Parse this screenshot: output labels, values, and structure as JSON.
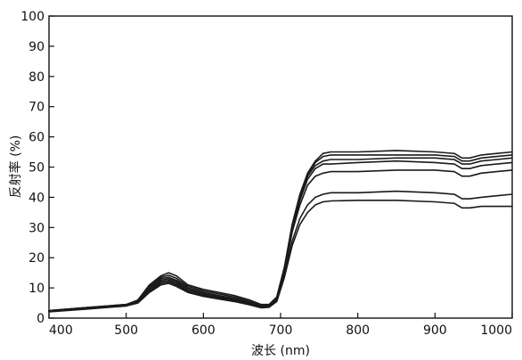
{
  "chart_data": {
    "type": "line",
    "xlabel": "波长 (nm)",
    "ylabel": "反射率 (%)",
    "xlim": [
      400,
      1000
    ],
    "ylim": [
      0,
      100
    ],
    "xticks": [
      400,
      500,
      600,
      700,
      800,
      900,
      1000
    ],
    "yticks": [
      0,
      10,
      20,
      30,
      40,
      50,
      60,
      70,
      80,
      90,
      100
    ],
    "grid": false,
    "legend": "none",
    "line_color": "#1a1a1a",
    "x": [
      400,
      450,
      500,
      515,
      530,
      545,
      555,
      565,
      580,
      600,
      620,
      640,
      660,
      675,
      685,
      695,
      705,
      715,
      725,
      735,
      745,
      755,
      765,
      800,
      850,
      900,
      925,
      935,
      945,
      960,
      980,
      1000
    ],
    "series": [
      {
        "values": [
          2.5,
          3.5,
          4.5,
          6.0,
          11.0,
          14.0,
          15.0,
          14.0,
          11.0,
          9.5,
          8.5,
          7.5,
          6.0,
          4.5,
          4.5,
          7.0,
          17.0,
          31.0,
          41.0,
          48.0,
          52.0,
          54.5,
          55.0,
          55.0,
          55.5,
          55.0,
          54.5,
          53.0,
          53.0,
          54.0,
          54.5,
          55.0
        ]
      },
      {
        "values": [
          2.5,
          3.5,
          4.5,
          5.8,
          10.5,
          13.5,
          14.2,
          13.2,
          10.5,
          9.0,
          8.0,
          7.0,
          5.5,
          4.2,
          4.3,
          6.8,
          16.5,
          30.5,
          40.5,
          47.5,
          51.5,
          53.5,
          54.0,
          54.0,
          54.0,
          54.0,
          53.5,
          52.0,
          52.0,
          53.0,
          53.5,
          54.0
        ]
      },
      {
        "values": [
          2.4,
          3.4,
          4.4,
          5.7,
          10.0,
          13.0,
          13.5,
          12.5,
          10.0,
          8.5,
          7.5,
          6.5,
          5.2,
          4.0,
          4.2,
          6.5,
          16.0,
          30.0,
          40.0,
          47.0,
          50.5,
          52.0,
          52.5,
          52.5,
          53.0,
          53.0,
          52.5,
          51.0,
          51.0,
          52.0,
          52.5,
          53.0
        ]
      },
      {
        "values": [
          2.3,
          3.3,
          4.3,
          5.5,
          9.5,
          12.5,
          13.0,
          12.0,
          9.5,
          8.2,
          7.2,
          6.2,
          5.0,
          3.8,
          4.0,
          6.3,
          15.5,
          29.5,
          39.0,
          46.0,
          49.5,
          51.0,
          51.0,
          51.5,
          52.0,
          51.5,
          51.0,
          49.5,
          49.5,
          50.5,
          51.0,
          51.5
        ]
      },
      {
        "values": [
          2.2,
          3.2,
          4.2,
          5.3,
          9.0,
          12.0,
          12.5,
          11.5,
          9.0,
          7.8,
          6.8,
          6.0,
          4.8,
          3.6,
          3.8,
          6.0,
          15.0,
          28.5,
          37.5,
          44.0,
          47.0,
          48.0,
          48.5,
          48.5,
          49.0,
          49.0,
          48.5,
          47.0,
          47.0,
          48.0,
          48.5,
          49.0
        ]
      },
      {
        "values": [
          2.2,
          3.1,
          4.1,
          5.2,
          8.8,
          11.5,
          12.0,
          11.0,
          8.8,
          7.5,
          6.6,
          5.8,
          4.6,
          3.5,
          3.7,
          5.8,
          14.0,
          25.5,
          33.0,
          37.5,
          40.0,
          41.0,
          41.5,
          41.5,
          42.0,
          41.5,
          41.0,
          39.5,
          39.5,
          40.0,
          40.5,
          41.0
        ]
      },
      {
        "values": [
          2.1,
          3.0,
          4.0,
          5.0,
          8.5,
          11.0,
          11.5,
          10.5,
          8.5,
          7.2,
          6.3,
          5.5,
          4.4,
          3.4,
          3.6,
          5.5,
          13.5,
          24.0,
          31.0,
          35.0,
          37.5,
          38.5,
          38.8,
          39.0,
          39.0,
          38.5,
          38.0,
          36.5,
          36.5,
          37.0,
          37.0,
          37.0
        ]
      }
    ]
  }
}
